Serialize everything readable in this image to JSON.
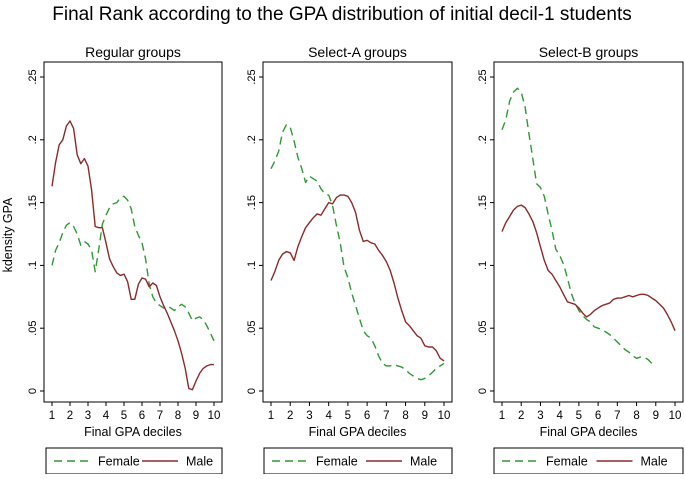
{
  "chart_data": {
    "type": "line",
    "title": "Final Rank according to the GPA distribution of initial decil-1 students",
    "ylabel": "kdensity GPA",
    "xlabel": "Final GPA deciles",
    "xlim": [
      0.8,
      10.2
    ],
    "ylim": [
      0,
      0.25
    ],
    "x_ticks": [
      "1",
      "2",
      "3",
      "4",
      "5",
      "6",
      "7",
      "8",
      "9",
      "10"
    ],
    "y_ticks": [
      "0",
      ".05",
      ".1",
      ".15",
      ".2",
      ".25"
    ],
    "legend": [
      {
        "name": "Female",
        "color": "#2e9a33",
        "dash": "8,5"
      },
      {
        "name": "Male",
        "color": "#8c2a2a",
        "dash": ""
      }
    ],
    "panels": [
      {
        "subtitle": "Regular groups",
        "series": [
          {
            "name": "Female",
            "x": [
              1,
              1.2,
              1.4,
              1.6,
              1.8,
              2,
              2.2,
              2.4,
              2.6,
              2.8,
              3,
              3.2,
              3.4,
              3.6,
              3.8,
              4,
              4.2,
              4.4,
              4.6,
              4.8,
              5,
              5.2,
              5.4,
              5.6,
              5.8,
              6,
              6.2,
              6.4,
              6.6,
              6.8,
              7,
              7.2,
              7.4,
              7.6,
              7.8,
              8,
              8.2,
              8.4,
              8.6,
              8.8,
              9,
              9.2,
              9.4,
              9.6,
              9.8,
              10
            ],
            "y": [
              0.1,
              0.112,
              0.118,
              0.126,
              0.132,
              0.134,
              0.131,
              0.125,
              0.116,
              0.119,
              0.117,
              0.112,
              0.095,
              0.113,
              0.133,
              0.14,
              0.146,
              0.149,
              0.15,
              0.154,
              0.155,
              0.152,
              0.145,
              0.131,
              0.124,
              0.118,
              0.105,
              0.085,
              0.075,
              0.07,
              0.068,
              0.066,
              0.068,
              0.066,
              0.064,
              0.067,
              0.069,
              0.067,
              0.062,
              0.056,
              0.058,
              0.059,
              0.057,
              0.052,
              0.046,
              0.04
            ]
          },
          {
            "name": "Male",
            "x": [
              1,
              1.2,
              1.4,
              1.6,
              1.8,
              2,
              2.2,
              2.4,
              2.6,
              2.8,
              3,
              3.2,
              3.4,
              3.6,
              3.8,
              4,
              4.2,
              4.4,
              4.6,
              4.8,
              5,
              5.2,
              5.4,
              5.6,
              5.8,
              6,
              6.2,
              6.4,
              6.6,
              6.8,
              7,
              7.2,
              7.4,
              7.6,
              7.8,
              8,
              8.2,
              8.4,
              8.6,
              8.8,
              9,
              9.2,
              9.4,
              9.6,
              9.8,
              10
            ],
            "y": [
              0.163,
              0.182,
              0.196,
              0.2,
              0.211,
              0.215,
              0.209,
              0.188,
              0.181,
              0.185,
              0.179,
              0.16,
              0.131,
              0.13,
              0.13,
              0.118,
              0.105,
              0.099,
              0.094,
              0.092,
              0.093,
              0.087,
              0.073,
              0.073,
              0.085,
              0.09,
              0.089,
              0.083,
              0.086,
              0.084,
              0.075,
              0.068,
              0.062,
              0.055,
              0.048,
              0.04,
              0.03,
              0.018,
              0.002,
              0.001,
              0.008,
              0.014,
              0.018,
              0.02,
              0.021,
              0.021
            ]
          }
        ]
      },
      {
        "subtitle": "Select-A groups",
        "series": [
          {
            "name": "Female",
            "x": [
              1,
              1.2,
              1.4,
              1.6,
              1.8,
              2,
              2.2,
              2.4,
              2.6,
              2.8,
              3,
              3.2,
              3.4,
              3.6,
              3.8,
              4,
              4.2,
              4.4,
              4.6,
              4.8,
              5,
              5.2,
              5.4,
              5.6,
              5.8,
              6,
              6.2,
              6.4,
              6.6,
              6.8,
              7,
              7.2,
              7.4,
              7.6,
              7.8,
              8,
              8.2,
              8.4,
              8.6,
              8.8,
              9,
              9.2,
              9.4,
              9.6,
              9.8,
              10
            ],
            "y": [
              0.177,
              0.183,
              0.191,
              0.206,
              0.212,
              0.21,
              0.199,
              0.186,
              0.177,
              0.166,
              0.171,
              0.169,
              0.167,
              0.161,
              0.157,
              0.156,
              0.148,
              0.132,
              0.118,
              0.099,
              0.09,
              0.078,
              0.068,
              0.058,
              0.048,
              0.044,
              0.042,
              0.036,
              0.028,
              0.022,
              0.02,
              0.02,
              0.021,
              0.02,
              0.019,
              0.017,
              0.014,
              0.012,
              0.01,
              0.009,
              0.01,
              0.012,
              0.015,
              0.018,
              0.02,
              0.022
            ]
          },
          {
            "name": "Male",
            "x": [
              1,
              1.2,
              1.4,
              1.6,
              1.8,
              2,
              2.2,
              2.4,
              2.6,
              2.8,
              3,
              3.2,
              3.4,
              3.6,
              3.8,
              4,
              4.2,
              4.4,
              4.6,
              4.8,
              5,
              5.2,
              5.4,
              5.6,
              5.8,
              6,
              6.2,
              6.4,
              6.6,
              6.8,
              7,
              7.2,
              7.4,
              7.6,
              7.8,
              8,
              8.2,
              8.4,
              8.6,
              8.8,
              9,
              9.2,
              9.4,
              9.6,
              9.8,
              10
            ],
            "y": [
              0.088,
              0.095,
              0.104,
              0.109,
              0.111,
              0.11,
              0.104,
              0.115,
              0.123,
              0.13,
              0.134,
              0.138,
              0.141,
              0.14,
              0.145,
              0.15,
              0.149,
              0.154,
              0.156,
              0.156,
              0.155,
              0.15,
              0.142,
              0.128,
              0.119,
              0.12,
              0.118,
              0.117,
              0.112,
              0.108,
              0.103,
              0.096,
              0.086,
              0.074,
              0.064,
              0.055,
              0.052,
              0.048,
              0.044,
              0.042,
              0.036,
              0.035,
              0.035,
              0.032,
              0.026,
              0.024
            ]
          }
        ]
      },
      {
        "subtitle": "Select-B groups",
        "series": [
          {
            "name": "Female",
            "x": [
              1,
              1.2,
              1.4,
              1.6,
              1.8,
              2,
              2.2,
              2.4,
              2.6,
              2.8,
              3,
              3.2,
              3.4,
              3.6,
              3.8,
              4,
              4.2,
              4.4,
              4.6,
              4.8,
              5,
              5.2,
              5.4,
              5.6,
              5.8,
              6,
              6.2,
              6.4,
              6.6,
              6.8,
              7,
              7.2,
              7.4,
              7.6,
              7.8,
              8,
              8.2,
              8.4,
              8.6,
              8.8,
              9
            ],
            "y": [
              0.208,
              0.216,
              0.231,
              0.238,
              0.241,
              0.238,
              0.226,
              0.205,
              0.185,
              0.165,
              0.162,
              0.155,
              0.141,
              0.128,
              0.113,
              0.108,
              0.101,
              0.09,
              0.078,
              0.07,
              0.064,
              0.06,
              0.057,
              0.055,
              0.051,
              0.05,
              0.049,
              0.047,
              0.045,
              0.042,
              0.039,
              0.036,
              0.033,
              0.031,
              0.028,
              0.026,
              0.027,
              0.027,
              0.025,
              0.022,
              0.02
            ]
          },
          {
            "name": "Male",
            "x": [
              1,
              1.2,
              1.4,
              1.6,
              1.8,
              2,
              2.2,
              2.4,
              2.6,
              2.8,
              3,
              3.2,
              3.4,
              3.6,
              3.8,
              4,
              4.2,
              4.4,
              4.6,
              4.8,
              5,
              5.2,
              5.4,
              5.6,
              5.8,
              6,
              6.2,
              6.4,
              6.6,
              6.8,
              7,
              7.2,
              7.4,
              7.6,
              7.8,
              8,
              8.2,
              8.4,
              8.6,
              8.8,
              9,
              9.2,
              9.4,
              9.6,
              9.8,
              10
            ],
            "y": [
              0.127,
              0.134,
              0.139,
              0.144,
              0.147,
              0.148,
              0.146,
              0.141,
              0.135,
              0.126,
              0.115,
              0.104,
              0.096,
              0.093,
              0.088,
              0.083,
              0.077,
              0.071,
              0.07,
              0.069,
              0.066,
              0.062,
              0.059,
              0.061,
              0.064,
              0.066,
              0.068,
              0.069,
              0.07,
              0.073,
              0.074,
              0.074,
              0.075,
              0.076,
              0.075,
              0.076,
              0.077,
              0.077,
              0.076,
              0.074,
              0.072,
              0.069,
              0.066,
              0.061,
              0.055,
              0.048
            ]
          }
        ]
      }
    ]
  }
}
